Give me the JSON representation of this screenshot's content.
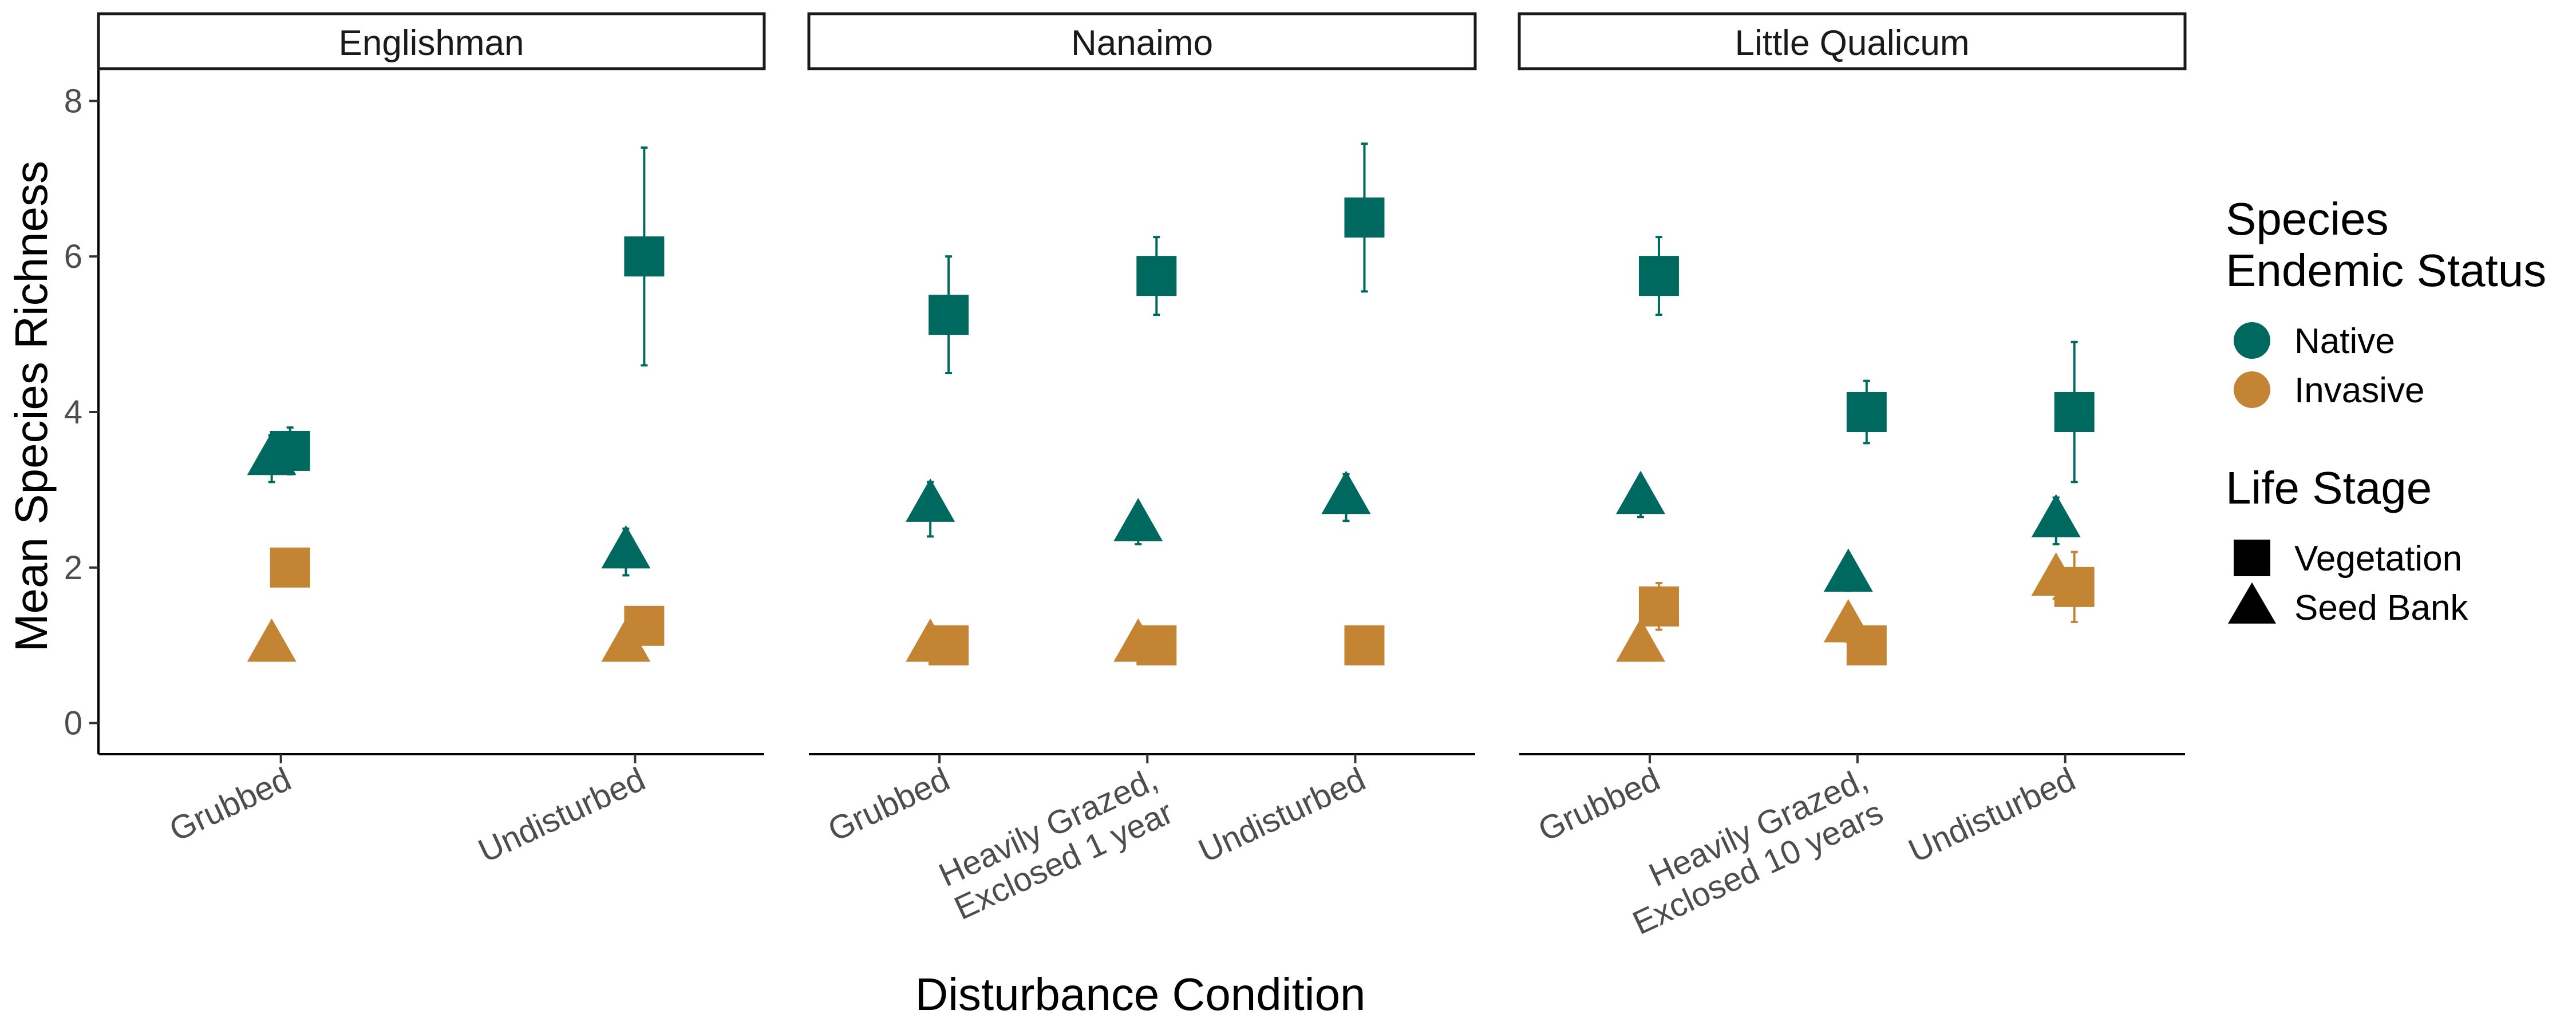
{
  "chart_data": {
    "type": "scatter",
    "facet_by": "site",
    "ylabel": "Mean Species Richness",
    "xlabel": "Disturbance Condition",
    "ylim": [
      -0.4,
      8.4
    ],
    "yticks": [
      0,
      2,
      4,
      6,
      8
    ],
    "grid": false,
    "legend_position": "right",
    "colors": {
      "Native": "#00695f",
      "Invasive": "#c38533"
    },
    "legend": {
      "color_title_lines": [
        "Species",
        "Endemic Status"
      ],
      "color_items": [
        "Native",
        "Invasive"
      ],
      "shape_title": "Life Stage",
      "shape_items": [
        "Vegetation",
        "Seed Bank"
      ]
    },
    "panels": [
      {
        "name": "Englishman",
        "categories": [
          {
            "lines": [
              "Grubbed"
            ]
          },
          {
            "lines": [
              "Undisturbed"
            ]
          }
        ],
        "points": [
          {
            "cat": 0,
            "status": "Native",
            "stage": "Vegetation",
            "y": 3.5,
            "lo": 3.2,
            "hi": 3.8
          },
          {
            "cat": 0,
            "status": "Native",
            "stage": "Seed Bank",
            "y": 3.4,
            "lo": 3.1,
            "hi": 3.7
          },
          {
            "cat": 0,
            "status": "Invasive",
            "stage": "Vegetation",
            "y": 2.0,
            "lo": 2.0,
            "hi": 2.0
          },
          {
            "cat": 0,
            "status": "Invasive",
            "stage": "Seed Bank",
            "y": 1.0,
            "lo": 1.0,
            "hi": 1.0
          },
          {
            "cat": 1,
            "status": "Native",
            "stage": "Vegetation",
            "y": 6.0,
            "lo": 4.6,
            "hi": 7.4
          },
          {
            "cat": 1,
            "status": "Native",
            "stage": "Seed Bank",
            "y": 2.2,
            "lo": 1.9,
            "hi": 2.5
          },
          {
            "cat": 1,
            "status": "Invasive",
            "stage": "Vegetation",
            "y": 1.25,
            "lo": 1.05,
            "hi": 1.45
          },
          {
            "cat": 1,
            "status": "Invasive",
            "stage": "Seed Bank",
            "y": 1.0,
            "lo": 1.0,
            "hi": 1.0
          }
        ]
      },
      {
        "name": "Nanaimo",
        "categories": [
          {
            "lines": [
              "Grubbed"
            ]
          },
          {
            "lines": [
              "Heavily Grazed,",
              "Exclosed 1 year"
            ]
          },
          {
            "lines": [
              "Undisturbed"
            ]
          }
        ],
        "points": [
          {
            "cat": 0,
            "status": "Native",
            "stage": "Vegetation",
            "y": 5.25,
            "lo": 4.5,
            "hi": 6.0
          },
          {
            "cat": 0,
            "status": "Native",
            "stage": "Seed Bank",
            "y": 2.8,
            "lo": 2.4,
            "hi": 3.1
          },
          {
            "cat": 0,
            "status": "Invasive",
            "stage": "Vegetation",
            "y": 1.0,
            "lo": 1.0,
            "hi": 1.0
          },
          {
            "cat": 0,
            "status": "Invasive",
            "stage": "Seed Bank",
            "y": 1.0,
            "lo": 1.0,
            "hi": 1.0
          },
          {
            "cat": 1,
            "status": "Native",
            "stage": "Vegetation",
            "y": 5.75,
            "lo": 5.25,
            "hi": 6.25
          },
          {
            "cat": 1,
            "status": "Native",
            "stage": "Seed Bank",
            "y": 2.55,
            "lo": 2.3,
            "hi": 2.8
          },
          {
            "cat": 1,
            "status": "Invasive",
            "stage": "Vegetation",
            "y": 1.0,
            "lo": 1.0,
            "hi": 1.0
          },
          {
            "cat": 1,
            "status": "Invasive",
            "stage": "Seed Bank",
            "y": 1.0,
            "lo": 1.0,
            "hi": 1.0
          },
          {
            "cat": 2,
            "status": "Native",
            "stage": "Vegetation",
            "y": 6.5,
            "lo": 5.55,
            "hi": 7.45
          },
          {
            "cat": 2,
            "status": "Native",
            "stage": "Seed Bank",
            "y": 2.9,
            "lo": 2.6,
            "hi": 3.2
          },
          {
            "cat": 2,
            "status": "Invasive",
            "stage": "Vegetation",
            "y": 1.0,
            "lo": 1.0,
            "hi": 1.0
          }
        ]
      },
      {
        "name": "Little Qualicum",
        "categories": [
          {
            "lines": [
              "Grubbed"
            ]
          },
          {
            "lines": [
              "Heavily Grazed,",
              "Exclosed 10 years"
            ]
          },
          {
            "lines": [
              "Undisturbed"
            ]
          }
        ],
        "points": [
          {
            "cat": 0,
            "status": "Native",
            "stage": "Vegetation",
            "y": 5.75,
            "lo": 5.25,
            "hi": 6.25
          },
          {
            "cat": 0,
            "status": "Native",
            "stage": "Seed Bank",
            "y": 2.9,
            "lo": 2.65,
            "hi": 3.15
          },
          {
            "cat": 0,
            "status": "Invasive",
            "stage": "Vegetation",
            "y": 1.5,
            "lo": 1.2,
            "hi": 1.8
          },
          {
            "cat": 0,
            "status": "Invasive",
            "stage": "Seed Bank",
            "y": 1.0,
            "lo": 1.0,
            "hi": 1.0
          },
          {
            "cat": 1,
            "status": "Native",
            "stage": "Vegetation",
            "y": 4.0,
            "lo": 3.6,
            "hi": 4.4
          },
          {
            "cat": 1,
            "status": "Native",
            "stage": "Seed Bank",
            "y": 1.9,
            "lo": 1.7,
            "hi": 2.1
          },
          {
            "cat": 1,
            "status": "Invasive",
            "stage": "Vegetation",
            "y": 1.0,
            "lo": 1.0,
            "hi": 1.0
          },
          {
            "cat": 1,
            "status": "Invasive",
            "stage": "Seed Bank",
            "y": 1.25,
            "lo": 1.05,
            "hi": 1.45
          },
          {
            "cat": 2,
            "status": "Native",
            "stage": "Vegetation",
            "y": 4.0,
            "lo": 3.1,
            "hi": 4.9
          },
          {
            "cat": 2,
            "status": "Native",
            "stage": "Seed Bank",
            "y": 2.6,
            "lo": 2.3,
            "hi": 2.9
          },
          {
            "cat": 2,
            "status": "Invasive",
            "stage": "Vegetation",
            "y": 1.75,
            "lo": 1.3,
            "hi": 2.2
          },
          {
            "cat": 2,
            "status": "Invasive",
            "stage": "Seed Bank",
            "y": 1.85,
            "lo": 1.6,
            "hi": 2.1
          }
        ]
      }
    ]
  }
}
